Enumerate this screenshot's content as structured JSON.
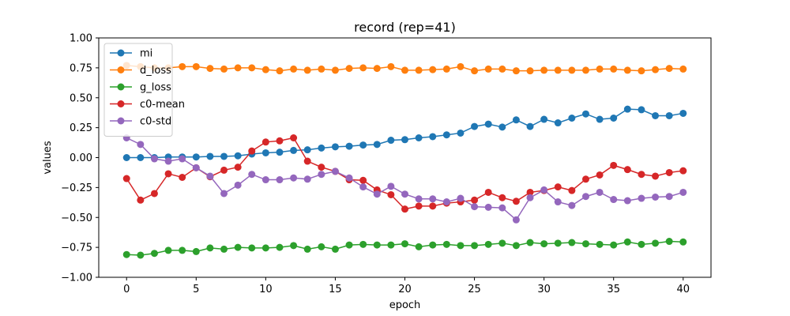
{
  "chart_data": {
    "type": "line",
    "title": "record (rep=41)",
    "xlabel": "epoch",
    "ylabel": "values",
    "xlim": [
      -2,
      42
    ],
    "ylim": [
      -1.0,
      1.0
    ],
    "xticks": [
      0,
      5,
      10,
      15,
      20,
      25,
      30,
      35,
      40
    ],
    "xtick_labels": [
      "0",
      "5",
      "10",
      "15",
      "20",
      "25",
      "30",
      "35",
      "40"
    ],
    "yticks": [
      -1.0,
      -0.75,
      -0.5,
      -0.25,
      0.0,
      0.25,
      0.5,
      0.75,
      1.0
    ],
    "ytick_labels": [
      "−1.00",
      "−0.75",
      "−0.50",
      "−0.25",
      "0.00",
      "0.25",
      "0.50",
      "0.75",
      "1.00"
    ],
    "grid": false,
    "legend_position": "top-left",
    "x": [
      0,
      1,
      2,
      3,
      4,
      5,
      6,
      7,
      8,
      9,
      10,
      11,
      12,
      13,
      14,
      15,
      16,
      17,
      18,
      19,
      20,
      21,
      22,
      23,
      24,
      25,
      26,
      27,
      28,
      29,
      30,
      31,
      32,
      33,
      34,
      35,
      36,
      37,
      38,
      39,
      40
    ],
    "series": [
      {
        "name": "mi",
        "color": "#1f77b4",
        "values": [
          0.0,
          0.0,
          0.0,
          0.005,
          0.005,
          0.005,
          0.01,
          0.01,
          0.015,
          0.03,
          0.04,
          0.045,
          0.06,
          0.065,
          0.08,
          0.09,
          0.095,
          0.105,
          0.11,
          0.145,
          0.15,
          0.165,
          0.175,
          0.19,
          0.205,
          0.26,
          0.28,
          0.255,
          0.315,
          0.26,
          0.32,
          0.29,
          0.33,
          0.365,
          0.32,
          0.33,
          0.405,
          0.4,
          0.35,
          0.35,
          0.37
        ]
      },
      {
        "name": "d_loss",
        "color": "#ff7f0e",
        "values": [
          0.77,
          0.76,
          0.75,
          0.75,
          0.76,
          0.76,
          0.745,
          0.74,
          0.75,
          0.75,
          0.735,
          0.725,
          0.74,
          0.73,
          0.74,
          0.73,
          0.745,
          0.75,
          0.745,
          0.76,
          0.73,
          0.73,
          0.735,
          0.74,
          0.76,
          0.725,
          0.74,
          0.74,
          0.725,
          0.725,
          0.73,
          0.73,
          0.73,
          0.73,
          0.74,
          0.74,
          0.73,
          0.725,
          0.735,
          0.745,
          0.74
        ]
      },
      {
        "name": "g_loss",
        "color": "#2ca02c",
        "values": [
          -0.81,
          -0.815,
          -0.8,
          -0.775,
          -0.775,
          -0.785,
          -0.755,
          -0.765,
          -0.75,
          -0.755,
          -0.755,
          -0.75,
          -0.735,
          -0.765,
          -0.745,
          -0.765,
          -0.73,
          -0.725,
          -0.73,
          -0.73,
          -0.72,
          -0.745,
          -0.73,
          -0.725,
          -0.735,
          -0.735,
          -0.725,
          -0.715,
          -0.735,
          -0.71,
          -0.72,
          -0.715,
          -0.71,
          -0.72,
          -0.725,
          -0.73,
          -0.705,
          -0.725,
          -0.715,
          -0.7,
          -0.705
        ]
      },
      {
        "name": "c0-mean",
        "color": "#d62728",
        "values": [
          -0.175,
          -0.355,
          -0.3,
          -0.135,
          -0.165,
          -0.085,
          -0.16,
          -0.105,
          -0.08,
          0.055,
          0.13,
          0.14,
          0.165,
          -0.03,
          -0.08,
          -0.115,
          -0.185,
          -0.19,
          -0.27,
          -0.31,
          -0.43,
          -0.405,
          -0.405,
          -0.38,
          -0.37,
          -0.355,
          -0.29,
          -0.335,
          -0.365,
          -0.29,
          -0.275,
          -0.245,
          -0.275,
          -0.18,
          -0.145,
          -0.065,
          -0.1,
          -0.14,
          -0.155,
          -0.125,
          -0.11
        ]
      },
      {
        "name": "c0-std",
        "color": "#9467bd",
        "values": [
          0.165,
          0.11,
          -0.01,
          -0.03,
          -0.01,
          -0.085,
          -0.155,
          -0.3,
          -0.23,
          -0.14,
          -0.185,
          -0.185,
          -0.17,
          -0.18,
          -0.14,
          -0.115,
          -0.17,
          -0.245,
          -0.305,
          -0.24,
          -0.305,
          -0.345,
          -0.345,
          -0.37,
          -0.34,
          -0.41,
          -0.415,
          -0.42,
          -0.52,
          -0.335,
          -0.27,
          -0.37,
          -0.4,
          -0.325,
          -0.29,
          -0.35,
          -0.36,
          -0.34,
          -0.33,
          -0.325,
          -0.29
        ]
      }
    ]
  }
}
